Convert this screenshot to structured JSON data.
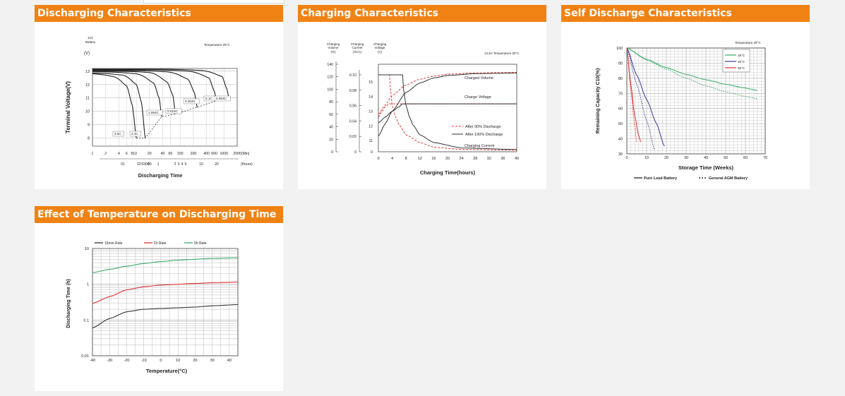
{
  "cards": {
    "discharge": {
      "title": "Discharging Characteristics",
      "chart_data": {
        "type": "line",
        "title": "",
        "ylabel": "Terminal Voltage(V)",
        "xlabel": "Discharging Time",
        "annotations": [
          "12V",
          "Battery",
          "(V)",
          "Temperature 25°C"
        ],
        "yticks": [
          "13",
          "12",
          "11",
          "10",
          "9",
          "8"
        ],
        "ylim": [
          7.4,
          13.2
        ],
        "xticks_min": [
          "1",
          "2",
          "4",
          "6",
          "810",
          "20",
          "40",
          "60",
          "100",
          "200",
          "400",
          "600",
          "1000",
          "2000"
        ],
        "x_min_unit": "(Min)",
        "xticks_hours": [
          "01",
          "02",
          "0304",
          "05",
          "1",
          "2",
          "3",
          "4",
          "5",
          "10",
          "20"
        ],
        "x_hours_unit": "(Hours)",
        "x_axis_scale": "log",
        "xlim_min": [
          1,
          2000
        ],
        "series": [
          {
            "label": "3.5C",
            "x": [
              1,
              3,
              6,
              8,
              10
            ],
            "y": [
              12.8,
              12.6,
              11.9,
              10.5,
              8.0
            ]
          },
          {
            "label": "2.4C",
            "x": [
              1,
              5,
              10,
              13,
              16
            ],
            "y": [
              12.85,
              12.7,
              12.0,
              10.7,
              8.0
            ]
          },
          {
            "label": "1.064C",
            "x": [
              1,
              10,
              25,
              33,
              38
            ],
            "y": [
              12.95,
              12.8,
              12.1,
              11.0,
              9.6
            ]
          },
          {
            "label": "0.615C",
            "x": [
              1,
              20,
              50,
              68,
              78
            ],
            "y": [
              13.0,
              12.9,
              12.2,
              11.2,
              9.8
            ]
          },
          {
            "label": "0.263C",
            "x": [
              1,
              50,
              150,
              210,
              245
            ],
            "y": [
              13.05,
              12.95,
              12.4,
              11.4,
              10.3
            ]
          },
          {
            "label": "0.1C",
            "x": [
              1,
              150,
              450,
              600,
              680
            ],
            "y": [
              13.1,
              13.0,
              12.5,
              11.5,
              10.8
            ]
          },
          {
            "label": "0.053C",
            "x": [
              1,
              300,
              900,
              1150,
              1300
            ],
            "y": [
              13.15,
              13.05,
              12.6,
              11.7,
              11.0
            ]
          }
        ],
        "cutoff_line": {
          "x": [
            10,
            16,
            38,
            78,
            245,
            680,
            1300
          ],
          "y": [
            8.0,
            8.0,
            9.6,
            9.8,
            10.3,
            10.8,
            11.0
          ]
        }
      }
    },
    "charge": {
      "title": "Charging Characteristics",
      "chart_data": {
        "type": "line",
        "xlabel": "Charging Time(hours)",
        "annotations": [
          "13.5V  Temperature 25°C"
        ],
        "axes": [
          {
            "label": "Charging Volume",
            "unit": "(%)",
            "ticks": [
              "140",
              "120",
              "100",
              "80",
              "60",
              "40",
              "20",
              "0"
            ]
          },
          {
            "label": "Charging Current",
            "unit": "(XCA)",
            "ticks": [
              "0.10",
              "0.08",
              "0.06",
              "0.04",
              "0.02",
              "0"
            ]
          },
          {
            "label": "Charging Voltage",
            "unit": "(V)",
            "ticks": [
              "15",
              "14",
              "13",
              "12",
              "11",
              "0"
            ]
          }
        ],
        "xticks": [
          "0",
          "4",
          "8",
          "12",
          "16",
          "20",
          "24",
          "28",
          "32",
          "36",
          "40"
        ],
        "xlim": [
          0,
          40
        ],
        "curve_labels": [
          "Charged Volume",
          "Charge Voltage",
          "Charging Current"
        ],
        "legend": [
          {
            "name": "After 50% Discharge",
            "style": "dashed",
            "color": "#e53333"
          },
          {
            "name": "After 100% Discharge",
            "style": "solid",
            "color": "#333333"
          }
        ],
        "series": [
          {
            "curve": "Charged Volume",
            "case": "After 50% Discharge",
            "x": [
              0,
              2,
              4,
              8,
              12,
              16,
              20,
              28,
              40
            ],
            "y": [
              60,
              75,
              90,
              107,
              116,
              121,
              124,
              126,
              127
            ]
          },
          {
            "curve": "Charged Volume",
            "case": "After 100% Discharge",
            "x": [
              0,
              2,
              4,
              8,
              12,
              16,
              20,
              28,
              40
            ],
            "y": [
              25,
              45,
              65,
              95,
              110,
              118,
              122,
              125,
              126
            ]
          },
          {
            "curve": "Charge Voltage",
            "case": "After 50% Discharge",
            "x": [
              0,
              1,
              2,
              3,
              4,
              5,
              8,
              40
            ],
            "y": [
              12.6,
              13.0,
              13.3,
              13.5,
              13.5,
              13.5,
              13.5,
              13.5
            ]
          },
          {
            "curve": "Charge Voltage",
            "case": "After 100% Discharge",
            "x": [
              0,
              2,
              4,
              6,
              7,
              8,
              40
            ],
            "y": [
              12.2,
              12.6,
              13.0,
              13.3,
              13.5,
              13.5,
              13.5
            ]
          },
          {
            "curve": "Charging Current",
            "case": "After 50% Discharge",
            "x": [
              0,
              3.2,
              3.5,
              4,
              5,
              6,
              8,
              12,
              16,
              24,
              40
            ],
            "y": [
              0.1,
              0.1,
              0.08,
              0.06,
              0.045,
              0.035,
              0.022,
              0.012,
              0.006,
              0.003,
              0.002
            ]
          },
          {
            "curve": "Charging Current",
            "case": "After 100% Discharge",
            "x": [
              0,
              7,
              7.3,
              8,
              9,
              10,
              12,
              16,
              24,
              40
            ],
            "y": [
              0.1,
              0.1,
              0.08,
              0.06,
              0.045,
              0.035,
              0.022,
              0.012,
              0.005,
              0.003
            ]
          }
        ]
      }
    },
    "selfdis": {
      "title": "Self Discharge Characteristics",
      "chart_data": {
        "type": "line",
        "ylabel": "Remaining Capacity C10(%)",
        "xlabel": "Storage Time (Weeks)",
        "annotations": [
          "Temperature 25°C"
        ],
        "yticks": [
          "100",
          "90",
          "80",
          "70",
          "60",
          "50",
          "40",
          "30"
        ],
        "ylim": [
          30,
          100
        ],
        "xticks": [
          "0",
          "10",
          "20",
          "30",
          "40",
          "50",
          "60",
          "70"
        ],
        "xlim": [
          0,
          70
        ],
        "legend": [
          {
            "name": "25°C",
            "color": "#3aaa6a"
          },
          {
            "name": "45°C",
            "color": "#3a3a9a"
          },
          {
            "name": "55°C",
            "color": "#e03030"
          }
        ],
        "legend_styles": [
          "Pure Lead Battery",
          "General AGM Battery"
        ],
        "series": [
          {
            "temp": "25°C",
            "type": "Pure Lead Battery",
            "x": [
              0,
              10,
              20,
              30,
              40,
              50,
              60,
              66
            ],
            "y": [
              100,
              92.5,
              87,
              82.5,
              79,
              76,
              73.5,
              72
            ]
          },
          {
            "temp": "25°C",
            "type": "General AGM Battery",
            "x": [
              0,
              10,
              20,
              30,
              40,
              50,
              60,
              66
            ],
            "y": [
              100,
              92,
              86,
              80,
              75,
              71,
              68,
              66.5
            ]
          },
          {
            "temp": "45°C",
            "type": "Pure Lead Battery",
            "x": [
              0,
              5,
              10,
              15,
              19
            ],
            "y": [
              100,
              82,
              66,
              50,
              35
            ]
          },
          {
            "temp": "45°C",
            "type": "General AGM Battery",
            "x": [
              0,
              5,
              10,
              14
            ],
            "y": [
              100,
              76,
              52,
              33
            ]
          },
          {
            "temp": "55°C",
            "type": "Pure Lead Battery",
            "x": [
              0,
              2,
              4,
              6,
              7
            ],
            "y": [
              100,
              76,
              55,
              42,
              38
            ]
          },
          {
            "temp": "55°C",
            "type": "General AGM Battery",
            "x": [
              0,
              2,
              4,
              5
            ],
            "y": [
              100,
              72,
              48,
              38
            ]
          }
        ]
      }
    },
    "temp": {
      "title": "Effect of Temperature on Discharging Time",
      "chart_data": {
        "type": "line",
        "ylabel": "Discharging Time (h)",
        "xlabel": "Temperature(°C)",
        "yticks": [
          "10",
          "1",
          "0.1",
          "0.01"
        ],
        "ylim": [
          0.01,
          10
        ],
        "y_axis_scale": "log",
        "xticks": [
          "-40",
          "-30",
          "-20",
          "-10",
          "0",
          "10",
          "20",
          "30",
          "40"
        ],
        "xlim": [
          -40,
          45
        ],
        "series": [
          {
            "name": "15min Rate",
            "color": "#333333",
            "x": [
              -40,
              -30,
              -20,
              -10,
              0,
              10,
              20,
              30,
              45
            ],
            "y": [
              0.06,
              0.11,
              0.17,
              0.2,
              0.21,
              0.22,
              0.23,
              0.25,
              0.27
            ]
          },
          {
            "name": "1h Rate",
            "color": "#e03030",
            "x": [
              -40,
              -30,
              -20,
              -10,
              0,
              10,
              20,
              30,
              45
            ],
            "y": [
              0.29,
              0.45,
              0.7,
              0.85,
              0.95,
              1.0,
              1.05,
              1.1,
              1.15
            ]
          },
          {
            "name": "5h Rate",
            "color": "#3aaa6a",
            "x": [
              -40,
              -30,
              -20,
              -10,
              0,
              10,
              20,
              30,
              45
            ],
            "y": [
              2.1,
              2.6,
              3.2,
              3.8,
              4.3,
              4.7,
              5.0,
              5.3,
              5.5
            ]
          }
        ]
      }
    }
  }
}
